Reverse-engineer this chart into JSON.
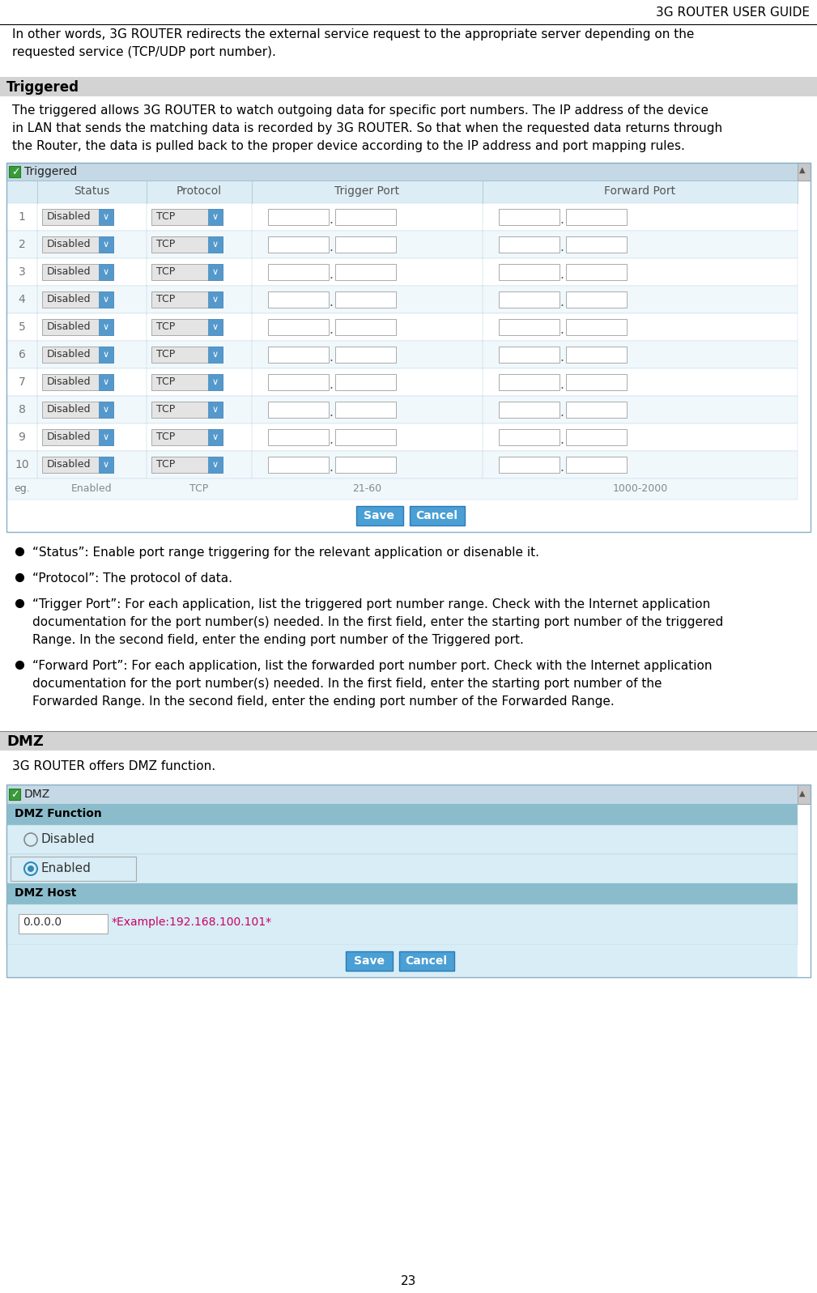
{
  "header_text": "3G ROUTER USER GUIDE",
  "page_number": "23",
  "intro_line1": "In other words, 3G ROUTER redirects the external service request to the appropriate server depending on the",
  "intro_line2": "requested service (TCP/UDP port number).",
  "section1_title": "Triggered",
  "body_line1": "The triggered allows 3G ROUTER to watch outgoing data for specific port numbers. The IP address of the device",
  "body_line2": "in LAN that sends the matching data is recorded by 3G ROUTER. So that when the requested data returns through",
  "body_line3": "the Router, the data is pulled back to the proper device according to the IP address and port mapping rules.",
  "bullet1": "“Status”: Enable port range triggering for the relevant application or disenable it.",
  "bullet2": "“Protocol”: The protocol of data.",
  "bullet3a": "“Trigger Port”: For each application, list the triggered port number range. Check with the Internet application",
  "bullet3b": "documentation for the port number(s) needed. In the first field, enter the starting port number of the triggered",
  "bullet3c": "Range. In the second field, enter the ending port number of the Triggered port.",
  "bullet4a": "“Forward Port”: For each application, list the forwarded port number port. Check with the Internet application",
  "bullet4b": "documentation for the port number(s) needed. In the first field, enter the starting port number of the",
  "bullet4c": "Forwarded Range. In the second field, enter the ending port number of the Forwarded Range.",
  "section2_title": "DMZ",
  "section2_body": "3G ROUTER offers DMZ function.",
  "tbl_title_bg": "#c8dde8",
  "tbl_hdr_bg": "#ddedf5",
  "tbl_row_bg1": "#ffffff",
  "tbl_row_bg2": "#f0f8fc",
  "tbl_eg_bg": "#f5fafd",
  "btn_blue": "#4a9fd4",
  "btn_border": "#2a7ab8",
  "disabled_bg": "#e4e4e4",
  "tcp_bg": "#e4e4e4",
  "dropdown_blue": "#5599cc",
  "input_bg": "#ffffff",
  "input_border": "#aaaaaa",
  "section_bar_bg": "#d3d3d3",
  "triggered_ttl_bg": "#c5d8e5",
  "scrollbar_bg": "#c0c0c0",
  "dmz_func_bar": "#8bbccc",
  "dmz_func_content": "#d8edf5",
  "dmz_host_bar": "#8bbccc",
  "dmz_host_content": "#d8edf5",
  "example_color": "#cc0066",
  "enabled_radio_color": "#3388bb",
  "bg_white": "#ffffff"
}
